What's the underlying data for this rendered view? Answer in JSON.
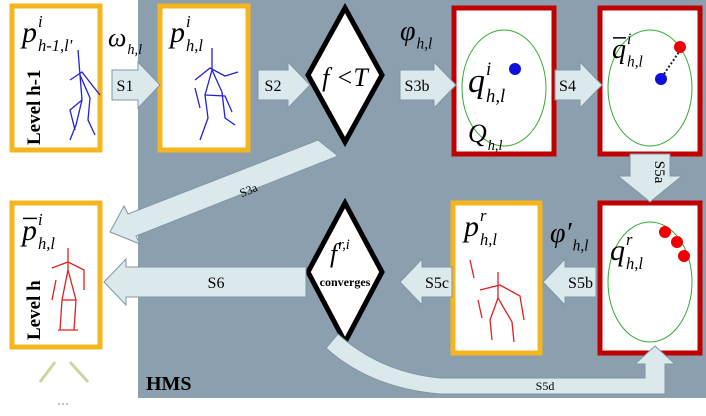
{
  "panel_label": "HMS",
  "boxes": [
    {
      "label": {
        "base": "p",
        "sup": "i",
        "sub": "h-1,l'"
      },
      "level": "Level h-1"
    },
    {
      "label": {
        "base": "p",
        "sup": "i",
        "sub": "h,l"
      }
    },
    {
      "label": {
        "base": "q",
        "sup": "i",
        "sub": "h,l"
      },
      "set": {
        "base": "Q",
        "sub": "h,l"
      }
    },
    {
      "label": {
        "base": "q",
        "sup": "i",
        "sub": "h,l"
      }
    },
    {
      "label": {
        "base": "q",
        "sup": "r",
        "sub": "h,l"
      }
    },
    {
      "label": {
        "base": "p",
        "sup": "r",
        "sub": "h,l"
      }
    },
    {
      "label": {
        "base": "p",
        "sup": "i",
        "sub": "h,l"
      },
      "level": "Level h"
    }
  ],
  "transforms": [
    {
      "base": "ω",
      "sub": "h,l"
    },
    {
      "base": "φ",
      "sub": "h,l"
    },
    {
      "base": "φ′",
      "sub": "h,l"
    }
  ],
  "decisions": [
    {
      "text": "f <T"
    },
    {
      "base": "f",
      "sup": "r,i",
      "text": "converges"
    }
  ],
  "steps": [
    "S1",
    "S2",
    "S3b",
    "S4",
    "S5a",
    "S5b",
    "S5c",
    "S6",
    "S3a",
    "S5d"
  ],
  "ellipsis": "..."
}
